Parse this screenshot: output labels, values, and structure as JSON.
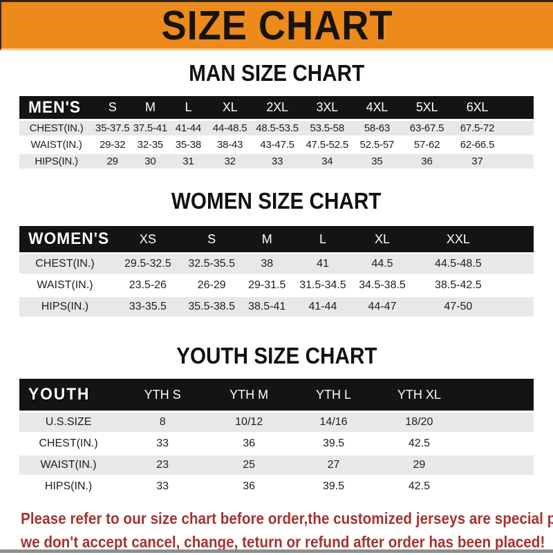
{
  "banner": {
    "title": "SIZE CHART"
  },
  "sections": [
    {
      "heading": "MAN SIZE CHART",
      "table": {
        "label": "MEN'S",
        "columns": [
          "S",
          "M",
          "L",
          "XL",
          "2XL",
          "3XL",
          "4XL",
          "5XL",
          "6XL"
        ],
        "rows": [
          {
            "label": "CHEST(IN.)",
            "values": [
              "35-37.5",
              "37.5-41",
              "41-44",
              "44-48.5",
              "48.5-53.5",
              "53.5-58",
              "58-63",
              "63-67.5",
              "67.5-72"
            ]
          },
          {
            "label": "WAIST(IN.)",
            "values": [
              "29-32",
              "32-35",
              "35-38",
              "38-43",
              "43-47.5",
              "47.5-52.5",
              "52.5-57",
              "57-62",
              "62-66.5"
            ]
          },
          {
            "label": "HIPS(IN.)",
            "values": [
              "29",
              "30",
              "31",
              "32",
              "33",
              "34",
              "35",
              "36",
              "37"
            ]
          }
        ]
      }
    },
    {
      "heading": "WOMEN SIZE CHART",
      "table": {
        "label": "WOMEN'S",
        "columns": [
          "XS",
          "S",
          "M",
          "L",
          "XL",
          "XXL"
        ],
        "rows": [
          {
            "label": "CHEST(IN.)",
            "values": [
              "29.5-32.5",
              "32.5-35.5",
              "38",
              "41",
              "44.5",
              "44.5-48.5"
            ]
          },
          {
            "label": "WAIST(IN.)",
            "values": [
              "23.5-26",
              "26-29",
              "29-31.5",
              "31.5-34.5",
              "34.5-38.5",
              "38.5-42.5"
            ]
          },
          {
            "label": "HIPS(IN.)",
            "values": [
              "33-35.5",
              "35.5-38.5",
              "38.5-41",
              "41-44",
              "44-47",
              "47-50"
            ]
          }
        ]
      }
    },
    {
      "heading": "YOUTH SIZE CHART",
      "table": {
        "label": "YOUTH",
        "columns": [
          "YTH S",
          "YTH M",
          "YTH L",
          "YTH XL"
        ],
        "rows": [
          {
            "label": "U.S.SIZE",
            "values": [
              "8",
              "10/12",
              "14/16",
              "18/20"
            ]
          },
          {
            "label": "CHEST(IN.)",
            "values": [
              "33",
              "36",
              "39.5",
              "42.5"
            ]
          },
          {
            "label": "WAIST(IN.)",
            "values": [
              "23",
              "25",
              "27",
              "29"
            ]
          },
          {
            "label": "HIPS(IN.)",
            "values": [
              "33",
              "36",
              "39.5",
              "42.5"
            ]
          }
        ]
      }
    }
  ],
  "footer": {
    "line1": "Please refer to our size chart before order,the customized jerseys are special products,",
    "line2": "we don't accept cancel, change, teturn or refund after order has been placed!"
  },
  "colors": {
    "banner_orange": "#EC8A1C",
    "header_bar_black": "#141414",
    "row_stripe_gray": "#E8E8E8",
    "note_red": "#A33431",
    "title_black": "#17130E"
  }
}
